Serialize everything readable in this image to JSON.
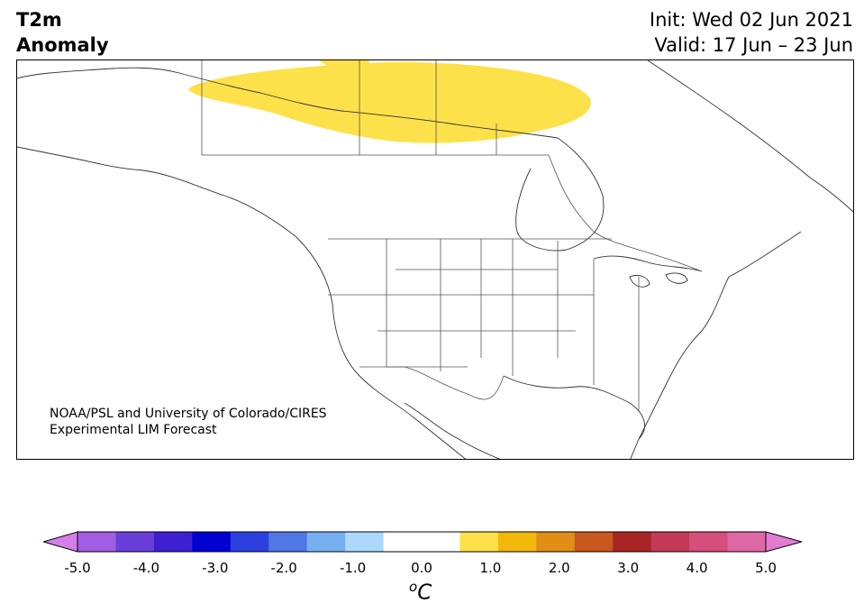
{
  "title": {
    "line1": "T2m",
    "line2": "Anomaly"
  },
  "info": {
    "init": "Init: Wed 02 Jun 2021",
    "valid": "Valid: 17 Jun – 23 Jun"
  },
  "credit": {
    "line1": "NOAA/PSL and University of Colorado/CIRES",
    "line2": "Experimental LIM Forecast"
  },
  "anomaly": {
    "value_label": "0.5 to 1.0",
    "color": "#fde14a"
  },
  "colorbar": {
    "unit_base": "C",
    "unit_prefix": "o",
    "colors": [
      "#d57ee8",
      "#a05ee2",
      "#6a3fd9",
      "#3e20d0",
      "#0000d0",
      "#2b40df",
      "#4f77e6",
      "#76b0f0",
      "#acd9fb",
      "#ffffff",
      "#ffffff",
      "#fde14a",
      "#f2b80a",
      "#e08e16",
      "#c8581d",
      "#a82424",
      "#c43858",
      "#d44f7c",
      "#dd68a6",
      "#e47bd2"
    ],
    "ticks": [
      "-5.0",
      "-4.0",
      "-3.0",
      "-2.0",
      "-1.0",
      "0.0",
      "1.0",
      "2.0",
      "3.0",
      "4.0",
      "5.0"
    ]
  }
}
